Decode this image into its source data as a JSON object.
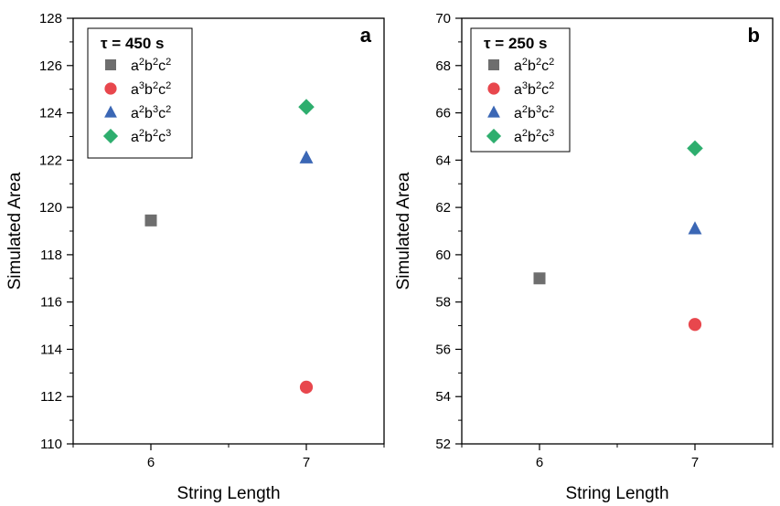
{
  "chart_data": [
    {
      "type": "scatter",
      "panel_label": "a",
      "legend_title": "τ = 450 s",
      "xlabel": "String Length",
      "ylabel": "Simulated Area",
      "xlim": [
        5.5,
        7.5
      ],
      "ylim": [
        110,
        128
      ],
      "xticks": [
        6,
        7
      ],
      "yticks": [
        110,
        112,
        114,
        116,
        118,
        120,
        122,
        124,
        126,
        128
      ],
      "grid": false,
      "legend_position": "top-left",
      "series": [
        {
          "name": "a²b²c²",
          "marker": "square",
          "color": "#6e6e6e",
          "points": [
            [
              6,
              119.45
            ]
          ]
        },
        {
          "name": "a³b²c²",
          "marker": "circle",
          "color": "#e8474d",
          "points": [
            [
              7,
              112.4
            ]
          ]
        },
        {
          "name": "a²b³c²",
          "marker": "triangle",
          "color": "#3b67b5",
          "points": [
            [
              7,
              122.1
            ]
          ]
        },
        {
          "name": "a²b²c³",
          "marker": "diamond",
          "color": "#2eae6e",
          "points": [
            [
              7,
              124.25
            ]
          ]
        }
      ]
    },
    {
      "type": "scatter",
      "panel_label": "b",
      "legend_title": "τ = 250 s",
      "xlabel": "String Length",
      "ylabel": "Simulated Area",
      "xlim": [
        5.5,
        7.5
      ],
      "ylim": [
        52,
        70
      ],
      "xticks": [
        6,
        7
      ],
      "yticks": [
        52,
        54,
        56,
        58,
        60,
        62,
        64,
        66,
        68,
        70
      ],
      "grid": false,
      "legend_position": "top-left",
      "series": [
        {
          "name": "a²b²c²",
          "marker": "square",
          "color": "#6e6e6e",
          "points": [
            [
              6,
              59.0
            ]
          ]
        },
        {
          "name": "a³b²c²",
          "marker": "circle",
          "color": "#e8474d",
          "points": [
            [
              7,
              57.05
            ]
          ]
        },
        {
          "name": "a²b³c²",
          "marker": "triangle",
          "color": "#3b67b5",
          "points": [
            [
              7,
              61.1
            ]
          ]
        },
        {
          "name": "a²b²c³",
          "marker": "diamond",
          "color": "#2eae6e",
          "points": [
            [
              7,
              64.5
            ]
          ]
        }
      ]
    }
  ]
}
